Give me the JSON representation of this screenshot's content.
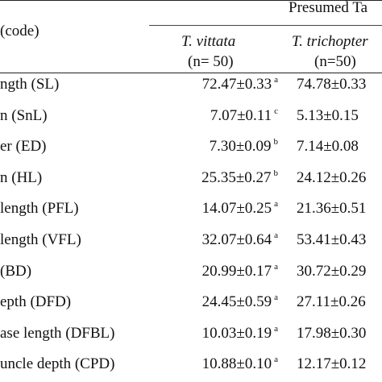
{
  "header": {
    "group_title": "Presumed Ta",
    "row_header": "(code)",
    "col1_name": "T. vittata",
    "col1_n": "(n= 50)",
    "col2_name": "T. trichopter",
    "col2_n": "(n=50)"
  },
  "rows": [
    {
      "label": "ngth (SL)",
      "v1": "72.47±0.33",
      "s1": "a",
      "v2": "74.78±0.33"
    },
    {
      "label": "n (SnL)",
      "v1": "7.07±0.11",
      "s1": "c",
      "v2": "5.13±0.15"
    },
    {
      "label": "er (ED)",
      "v1": "7.30±0.09",
      "s1": "b",
      "v2": "7.14±0.08"
    },
    {
      "label": "n (HL)",
      "v1": "25.35±0.27",
      "s1": "b",
      "v2": "24.12±0.26"
    },
    {
      "label": "length (PFL)",
      "v1": "14.07±0.25",
      "s1": "a",
      "v2": "21.36±0.51"
    },
    {
      "label": "length (VFL)",
      "v1": "32.07±0.64",
      "s1": "a",
      "v2": "53.41±0.43"
    },
    {
      "label": "(BD)",
      "v1": "20.99±0.17",
      "s1": "a",
      "v2": "30.72±0.29"
    },
    {
      "label": "epth (DFD)",
      "v1": "24.45±0.59",
      "s1": "a",
      "v2": "27.11±0.26"
    },
    {
      "label": "ase length (DFBL)",
      "v1": "10.03±0.19",
      "s1": "a",
      "v2": "17.98±0.30"
    },
    {
      "label": "uncle depth (CPD)",
      "v1": "10.88±0.10",
      "s1": "a",
      "v2": "12.17±0.12"
    }
  ]
}
